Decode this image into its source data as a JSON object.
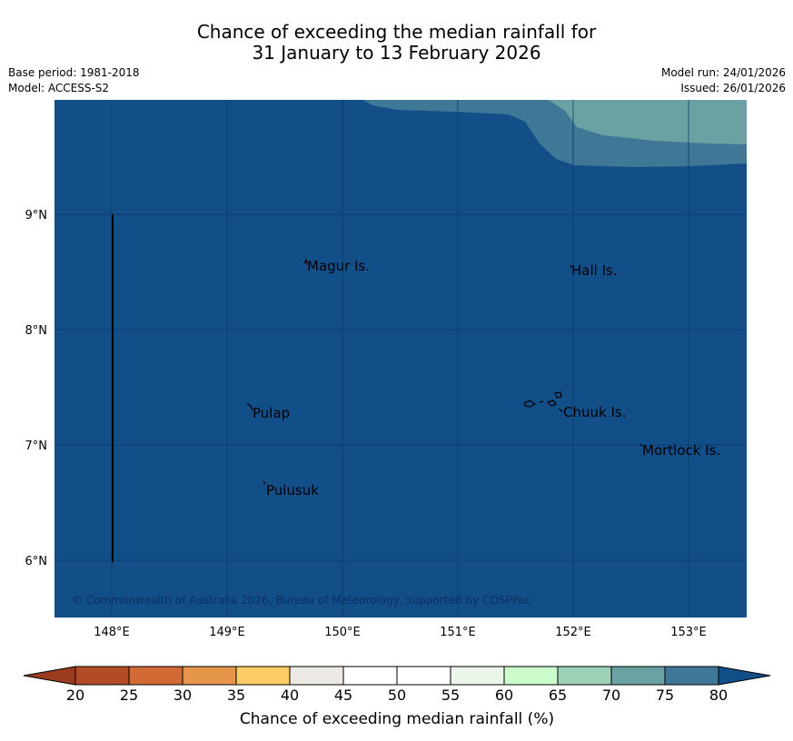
{
  "title": {
    "line1": "Chance of exceeding the median rainfall for",
    "line2": "31 January to 13 February 2026"
  },
  "meta": {
    "base_period": "Base period: 1981-2018",
    "model": "Model: ACCESS-S2",
    "model_run": "Model run: 24/01/2026",
    "issued": "Issued: 26/01/2026"
  },
  "map": {
    "lat_labels": [
      "9°N",
      "8°N",
      "7°N",
      "6°N"
    ],
    "lon_labels": [
      "148°E",
      "149°E",
      "150°E",
      "151°E",
      "152°E",
      "153°E"
    ],
    "places": [
      "Magur Is.",
      "Hall Is.",
      "Pulap",
      "Chuuk Is.",
      "Mortlock Is.",
      "Pulusuk"
    ],
    "copyright": "© Commonwealth of Australia 2026, Bureau of Meteorology, supported by COSPPac",
    "colors": {
      "band_80_plus": "#124e88",
      "band_75_80": "#3f7797",
      "band_70_75": "#6aa1a2"
    }
  },
  "colorbar": {
    "title": "Chance of exceeding median rainfall (%)",
    "ticks": [
      "20",
      "25",
      "30",
      "35",
      "40",
      "45",
      "50",
      "55",
      "60",
      "65",
      "70",
      "75",
      "80"
    ],
    "colors": {
      "below": "#9b3b20",
      "c20_25": "#b44b27",
      "c25_30": "#d26a35",
      "c30_35": "#e5964a",
      "c35_40": "#fdcb65",
      "c40_45": "#ede9e4",
      "c45_50": "#ffffff",
      "c50_55": "#ffffff",
      "c55_60": "#ebf5ea",
      "c60_65": "#ccfccc",
      "c65_70": "#9dd2b9",
      "c70_75": "#6aa1a2",
      "c75_80": "#3f7797",
      "above": "#124e88"
    }
  }
}
